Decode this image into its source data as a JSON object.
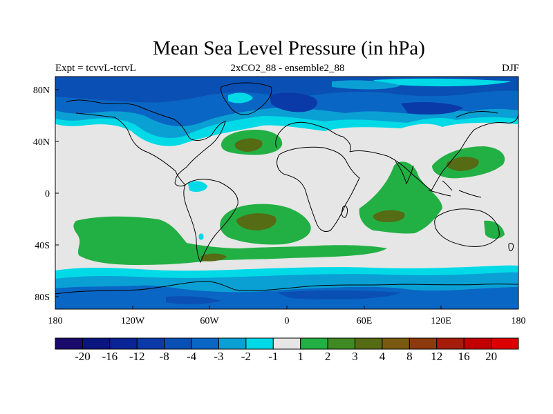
{
  "title": "Mean Sea Level Pressure (in hPa)",
  "subtitle_left": "Expt = tcvvL-tcrvL",
  "subtitle_center": "2xCO2_88 - ensemble2_88",
  "subtitle_right": "DJF",
  "x_ticks": [
    "180",
    "120W",
    "60W",
    "0",
    "60E",
    "120E",
    "180"
  ],
  "y_ticks": [
    "80N",
    "40N",
    "0",
    "40S",
    "80S"
  ],
  "colorbar": {
    "colors": [
      "#1a0a6b",
      "#0a1580",
      "#0a2496",
      "#0a3aa8",
      "#0a4fb4",
      "#0a66c4",
      "#0aa0d4",
      "#00dae6",
      "#e6e6e6",
      "#22b044",
      "#3f8a22",
      "#556b14",
      "#7a5a10",
      "#8c3a0c",
      "#a51c0a",
      "#c20000",
      "#dd0000"
    ],
    "labels": [
      "-20",
      "-16",
      "-12",
      "-8",
      "-4",
      "-3",
      "-2",
      "-1",
      "1",
      "2",
      "3",
      "4",
      "8",
      "12",
      "16",
      "20"
    ]
  },
  "chart_data": {
    "type": "heatmap",
    "title": "Mean Sea Level Pressure (in hPa)",
    "subtitle_left": "Expt = tcvvL-tcrvL",
    "subtitle_center": "2xCO2_88 - ensemble2_88",
    "subtitle_right": "DJF",
    "xlim": [
      -180,
      180
    ],
    "ylim": [
      -90,
      90
    ],
    "x_ticks": [
      "180",
      "120W",
      "60W",
      "0",
      "60E",
      "120E",
      "180"
    ],
    "y_ticks": [
      "80N",
      "40N",
      "0",
      "40S",
      "80S"
    ],
    "colorbar_levels": [
      -20,
      -16,
      -12,
      -8,
      -4,
      -3,
      -2,
      -1,
      1,
      2,
      3,
      4,
      8,
      12,
      16,
      20
    ],
    "field": {
      "northern_high_latitudes": "negative anomalies, -2 to -8 hPa",
      "tropics_and_subtropics": "near zero, -1 to 1 hPa",
      "southern_mid_latitudes": "positive anomalies, 1 to 4 hPa",
      "southern_high_latitudes": "negative anomalies, -2 to -4 hPa"
    }
  }
}
